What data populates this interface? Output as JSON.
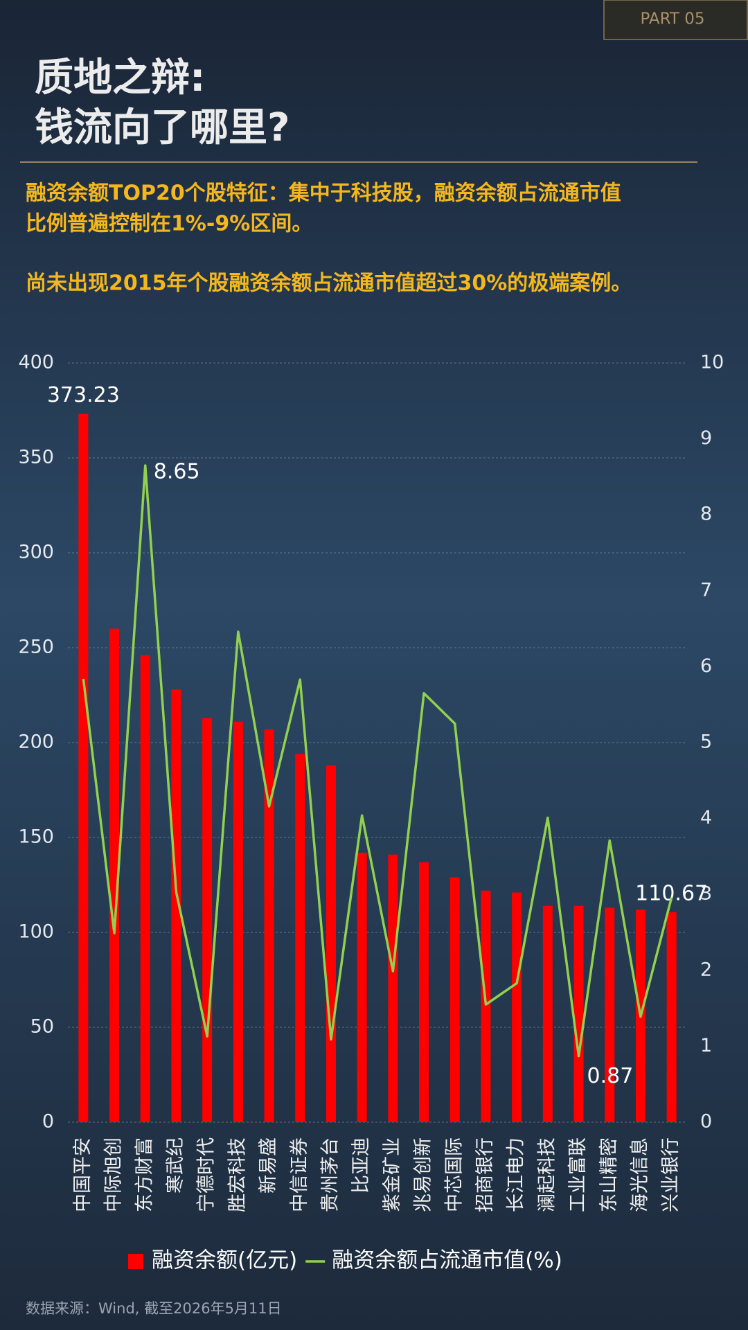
{
  "header": {
    "tag": "PART 05",
    "title_lines": [
      "质地之辩:",
      "钱流向了哪里?"
    ],
    "notes": [
      "融资余额TOP20个股特征：集中于科技股，融资余额占流通市值",
      "比例普遍控制在1%-9%区间。",
      "尚未出现2015年个股融资余额占流通市值超过30%的极端案例。"
    ]
  },
  "chart_data": {
    "type": "bar-line",
    "categories": [
      "中国平安",
      "中际旭创",
      "东方财富",
      "寒武纪",
      "宁德时代",
      "胜宏科技",
      "新易盛",
      "中信证券",
      "贵州茅台",
      "比亚迪",
      "紫金矿业",
      "兆易创新",
      "中芯国际",
      "招商银行",
      "长江电力",
      "澜起科技",
      "工业富联",
      "东山精密",
      "海光信息",
      "兴业银行"
    ],
    "series": [
      {
        "name": "融资余额(亿元)",
        "color": "#ff0000",
        "type": "bar",
        "values": [
          373.23,
          260,
          246,
          228,
          213,
          211,
          207,
          194,
          188,
          142,
          141,
          137,
          129,
          122,
          121,
          114,
          114,
          113,
          112,
          110.67
        ],
        "value_labels": [
          "373.23",
          null,
          null,
          null,
          null,
          null,
          null,
          null,
          null,
          null,
          null,
          null,
          null,
          null,
          null,
          null,
          null,
          null,
          null,
          "110.67"
        ]
      },
      {
        "name": "融资余额占流通市值(%)",
        "color": "#92d050",
        "type": "line",
        "axis": "y2",
        "values": [
          5.84,
          2.49,
          8.65,
          3.03,
          1.13,
          6.46,
          4.16,
          5.83,
          1.09,
          4.04,
          1.99,
          5.65,
          5.25,
          1.55,
          1.83,
          4.01,
          0.87,
          3.71,
          1.39,
          2.96
        ],
        "value_labels": [
          null,
          null,
          "8.65",
          null,
          null,
          null,
          null,
          null,
          null,
          null,
          null,
          null,
          null,
          null,
          null,
          null,
          "0.87",
          null,
          null,
          null
        ]
      }
    ],
    "ylim": [
      0,
      400
    ],
    "yticks": [
      0,
      50,
      100,
      150,
      200,
      250,
      300,
      350,
      400
    ],
    "y2lim": [
      0,
      10
    ],
    "y2ticks": [
      0,
      1,
      2,
      3,
      4,
      5,
      6,
      7,
      8,
      9,
      10
    ],
    "grid": true
  },
  "footer": {
    "source": "数据来源：Wind, 截至2026年5月11日"
  }
}
